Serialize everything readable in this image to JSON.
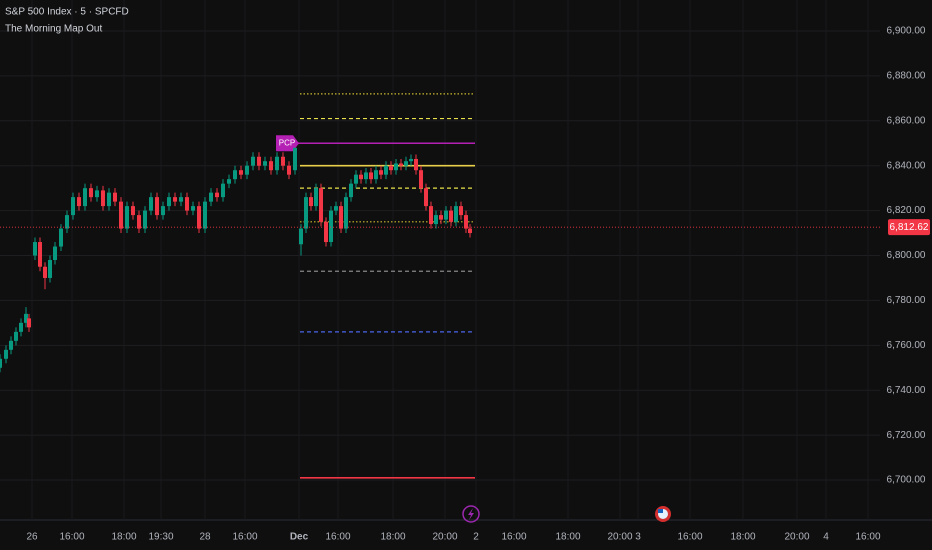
{
  "chart_data": {
    "type": "candlestick",
    "title": "S&P 500 Index · 5 · SPCFD",
    "subtitle": "The Morning Map Out",
    "up_color": "#089981",
    "down_color": "#f23645",
    "xlim": [
      0,
      880
    ],
    "xticks": [
      {
        "value": 32,
        "label": "26"
      },
      {
        "value": 72,
        "label": "16:00"
      },
      {
        "value": 124,
        "label": "18:00"
      },
      {
        "value": 161,
        "label": "19:30"
      },
      {
        "value": 205,
        "label": "28"
      },
      {
        "value": 245,
        "label": "16:00"
      },
      {
        "value": 299,
        "label": "Dec"
      },
      {
        "value": 338,
        "label": "16:00"
      },
      {
        "value": 393,
        "label": "18:00"
      },
      {
        "value": 445,
        "label": "20:00"
      },
      {
        "value": 476,
        "label": "2"
      },
      {
        "value": 514,
        "label": "16:00"
      },
      {
        "value": 568,
        "label": "18:00"
      },
      {
        "value": 620,
        "label": "20:00"
      },
      {
        "value": 638,
        "label": "3"
      },
      {
        "value": 690,
        "label": "16:00"
      },
      {
        "value": 743,
        "label": "18:00"
      },
      {
        "value": 797,
        "label": "20:00"
      },
      {
        "value": 826,
        "label": "4"
      },
      {
        "value": 868,
        "label": "16:00"
      }
    ],
    "ylim": [
      6682.2,
      6913.8
    ],
    "yticks": [
      {
        "value": 6700,
        "label": "6,700.00"
      },
      {
        "value": 6720,
        "label": "6,720.00"
      },
      {
        "value": 6740,
        "label": "6,740.00"
      },
      {
        "value": 6760,
        "label": "6,760.00"
      },
      {
        "value": 6780,
        "label": "6,780.00"
      },
      {
        "value": 6800,
        "label": "6,800.00"
      },
      {
        "value": 6820,
        "label": "6,820.00"
      },
      {
        "value": 6840,
        "label": "6,840.00"
      },
      {
        "value": 6860,
        "label": "6,860.00"
      },
      {
        "value": 6880,
        "label": "6,880.00"
      },
      {
        "value": 6900,
        "label": "6,900.00"
      }
    ],
    "grid": true,
    "x": [
      0,
      6,
      11,
      16,
      21,
      26,
      29,
      35,
      40,
      45,
      50,
      55,
      61,
      67,
      73,
      79,
      85,
      91,
      97,
      103,
      109,
      115,
      121,
      127,
      133,
      139,
      145,
      151,
      157,
      163,
      169,
      175,
      181,
      187,
      193,
      199,
      205,
      211,
      217,
      223,
      229,
      235,
      241,
      247,
      253,
      259,
      265,
      271,
      277,
      283,
      289,
      295,
      301,
      306,
      311,
      316,
      321,
      326,
      331,
      336,
      341,
      346,
      351,
      356,
      361,
      366,
      371,
      376,
      381,
      386,
      391,
      396,
      401,
      406,
      411,
      416,
      421,
      426,
      431,
      436,
      441,
      446,
      451,
      456,
      461,
      466,
      470
    ],
    "open": [
      6750,
      6754,
      6758,
      6762,
      6766,
      6770,
      6772,
      6800,
      6806,
      6795,
      6790,
      6798,
      6804,
      6812,
      6818,
      6826,
      6822,
      6830,
      6826,
      6829,
      6822,
      6828,
      6824,
      6812,
      6822,
      6818,
      6812,
      6820,
      6826,
      6818,
      6822,
      6826,
      6824,
      6826,
      6820,
      6822,
      6812,
      6824,
      6828,
      6826,
      6832,
      6834,
      6838,
      6836,
      6840,
      6844,
      6840,
      6842,
      6838,
      6844,
      6840,
      6838,
      6805,
      6812,
      6826,
      6822,
      6830,
      6815,
      6806,
      6820,
      6822,
      6812,
      6826,
      6832,
      6836,
      6834,
      6837,
      6834,
      6838,
      6836,
      6840,
      6838,
      6841,
      6840,
      6842,
      6843,
      6838,
      6830,
      6822,
      6814,
      6818,
      6816,
      6820,
      6815,
      6822,
      6818,
      6812
    ],
    "high": [
      6756,
      6760,
      6764,
      6768,
      6772,
      6777,
      6774,
      6808,
      6808,
      6797,
      6800,
      6806,
      6814,
      6820,
      6828,
      6828,
      6832,
      6832,
      6831,
      6831,
      6830,
      6830,
      6826,
      6824,
      6824,
      6820,
      6822,
      6828,
      6828,
      6824,
      6828,
      6828,
      6828,
      6828,
      6824,
      6824,
      6826,
      6830,
      6830,
      6834,
      6836,
      6840,
      6840,
      6842,
      6846,
      6846,
      6844,
      6844,
      6846,
      6846,
      6842,
      6848,
      6814,
      6828,
      6828,
      6832,
      6832,
      6817,
      6822,
      6824,
      6824,
      6828,
      6834,
      6838,
      6838,
      6839,
      6839,
      6840,
      6840,
      6842,
      6842,
      6843,
      6843,
      6844,
      6845,
      6845,
      6840,
      6832,
      6824,
      6820,
      6820,
      6822,
      6822,
      6824,
      6824,
      6820,
      6814
    ],
    "low": [
      6748,
      6752,
      6756,
      6760,
      6764,
      6768,
      6766,
      6798,
      6793,
      6785,
      6788,
      6796,
      6802,
      6810,
      6816,
      6820,
      6820,
      6824,
      6824,
      6820,
      6820,
      6822,
      6810,
      6810,
      6816,
      6810,
      6810,
      6818,
      6816,
      6816,
      6820,
      6822,
      6822,
      6818,
      6818,
      6810,
      6810,
      6822,
      6824,
      6824,
      6830,
      6832,
      6834,
      6834,
      6838,
      6838,
      6838,
      6836,
      6836,
      6838,
      6834,
      6836,
      6800,
      6810,
      6820,
      6820,
      6813,
      6804,
      6804,
      6818,
      6810,
      6810,
      6824,
      6830,
      6832,
      6832,
      6832,
      6832,
      6834,
      6834,
      6836,
      6836,
      6838,
      6838,
      6840,
      6836,
      6828,
      6820,
      6812,
      6812,
      6814,
      6814,
      6813,
      6813,
      6816,
      6810,
      6808
    ],
    "close": [
      6754,
      6758,
      6762,
      6766,
      6770,
      6774,
      6768,
      6806,
      6795,
      6790,
      6798,
      6804,
      6812,
      6818,
      6826,
      6822,
      6830,
      6826,
      6829,
      6822,
      6828,
      6824,
      6812,
      6822,
      6818,
      6812,
      6820,
      6826,
      6818,
      6822,
      6826,
      6824,
      6826,
      6820,
      6822,
      6812,
      6824,
      6828,
      6826,
      6832,
      6834,
      6838,
      6836,
      6840,
      6844,
      6840,
      6842,
      6838,
      6844,
      6840,
      6836,
      6848,
      6812,
      6826,
      6822,
      6830,
      6815,
      6806,
      6820,
      6822,
      6812,
      6826,
      6832,
      6836,
      6834,
      6837,
      6834,
      6838,
      6836,
      6840,
      6838,
      6841,
      6840,
      6842,
      6843,
      6838,
      6830,
      6822,
      6814,
      6818,
      6816,
      6820,
      6815,
      6822,
      6818,
      6812,
      6810
    ],
    "levels": [
      {
        "value": 6872,
        "color": "#c9b92e",
        "style": "dotted"
      },
      {
        "value": 6861,
        "color": "#e8e04a",
        "style": "dashed"
      },
      {
        "value": 6850,
        "color": "#b41fb4",
        "style": "solid",
        "label": "PCP"
      },
      {
        "value": 6840,
        "color": "#e8d04a",
        "style": "solid"
      },
      {
        "value": 6830,
        "color": "#e8e04a",
        "style": "dashed"
      },
      {
        "value": 6815,
        "color": "#c9b92e",
        "style": "dotted"
      },
      {
        "value": 6793,
        "color": "#888888",
        "style": "dashed"
      },
      {
        "value": 6766,
        "color": "#4a63e8",
        "style": "dashed"
      },
      {
        "value": 6701,
        "color": "#f23645",
        "style": "solid"
      }
    ],
    "last_price": {
      "value": 6812.62,
      "label": "6,812.62"
    }
  }
}
